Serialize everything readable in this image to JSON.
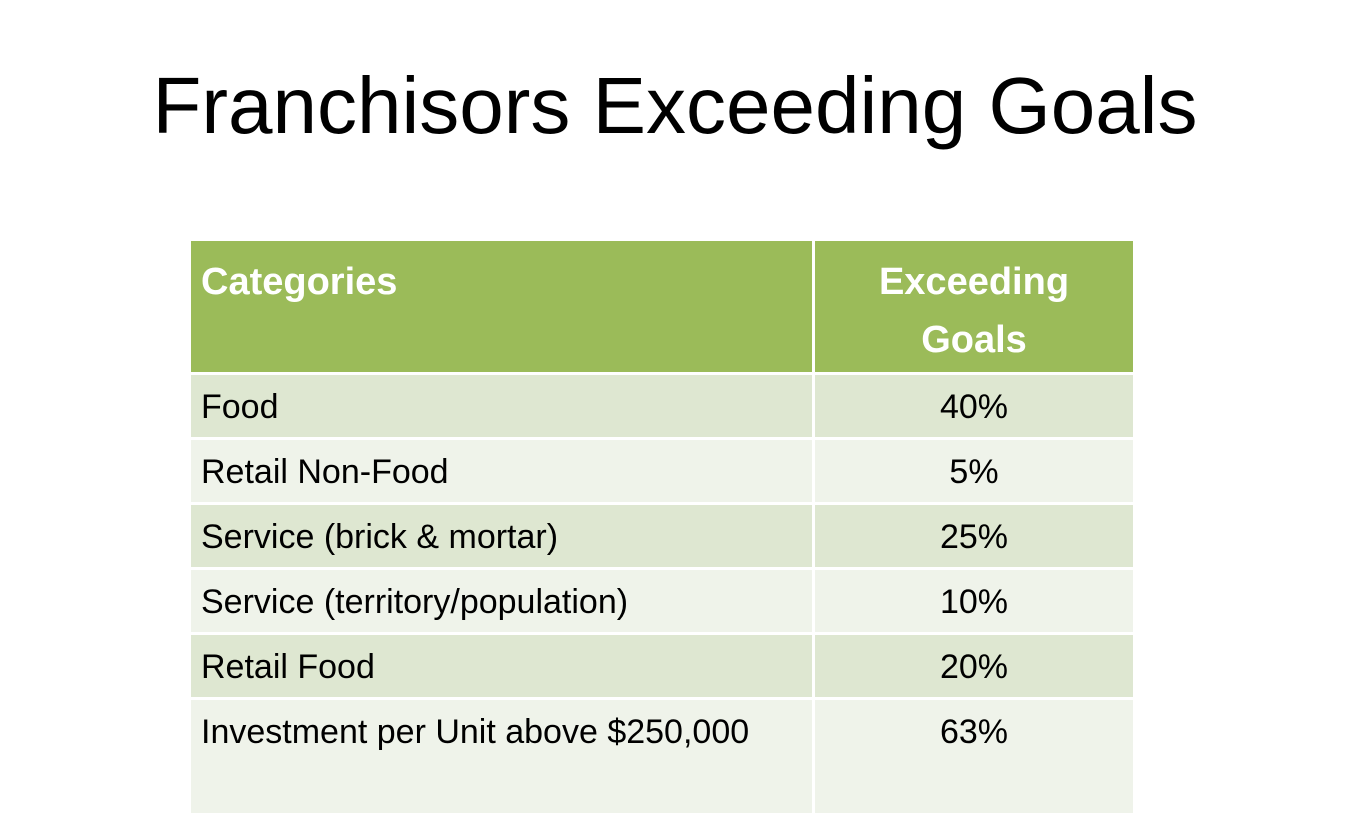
{
  "slide": {
    "title": "Franchisors Exceeding Goals"
  },
  "table": {
    "headers": {
      "category": "Categories",
      "value": "Exceeding Goals"
    },
    "rows": [
      {
        "category": "Food",
        "value": "40%"
      },
      {
        "category": "Retail Non-Food",
        "value": "5%"
      },
      {
        "category": "Service (brick & mortar)",
        "value": "25%"
      },
      {
        "category": "Service (territory/population)",
        "value": "10%"
      },
      {
        "category": "Retail Food",
        "value": "20%"
      },
      {
        "category": "Investment per Unit above $250,000",
        "value": "63%"
      }
    ]
  },
  "colors": {
    "header_bg": "#9bbb59",
    "row_dark": "#dee7d1",
    "row_light": "#eff3ea"
  }
}
